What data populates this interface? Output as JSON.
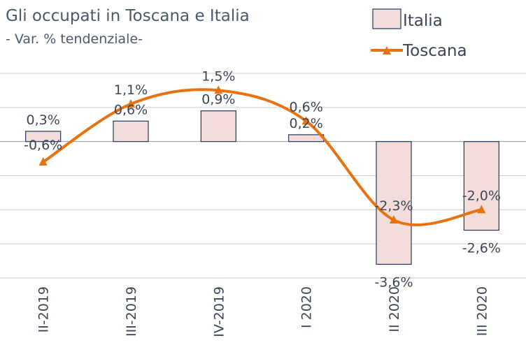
{
  "chart_data": {
    "type": "bar",
    "title": "Gli occupati in Toscana e Italia",
    "subtitle": "- Var. % tendenziale-",
    "categories": [
      "II-2019",
      "III-2019",
      "IV-2019",
      "I 2020",
      "II 2020",
      "III 2020"
    ],
    "series": [
      {
        "name": "Italia",
        "kind": "bar",
        "values": [
          0.3,
          0.6,
          0.9,
          0.2,
          -3.6,
          -2.6
        ],
        "labels": [
          "0,3%",
          "0,6%",
          "0,9%",
          "0,2%",
          "-3,6%",
          "-2,6%"
        ]
      },
      {
        "name": "Toscana",
        "kind": "line",
        "values": [
          -0.6,
          1.1,
          1.5,
          0.6,
          -2.3,
          -2.0
        ],
        "labels": [
          "-0,6%",
          "1,1%",
          "1,5%",
          "0,6%",
          "-2,3%",
          "-2,0%"
        ]
      }
    ],
    "ylim": [
      -4.0,
      2.0
    ],
    "grid": true,
    "legend": "top-right",
    "colors": {
      "bar_fill": "#f2dcdc",
      "bar_stroke": "#1f3a5f",
      "line": "#e8720f",
      "grid": "#c8cdd3"
    }
  }
}
